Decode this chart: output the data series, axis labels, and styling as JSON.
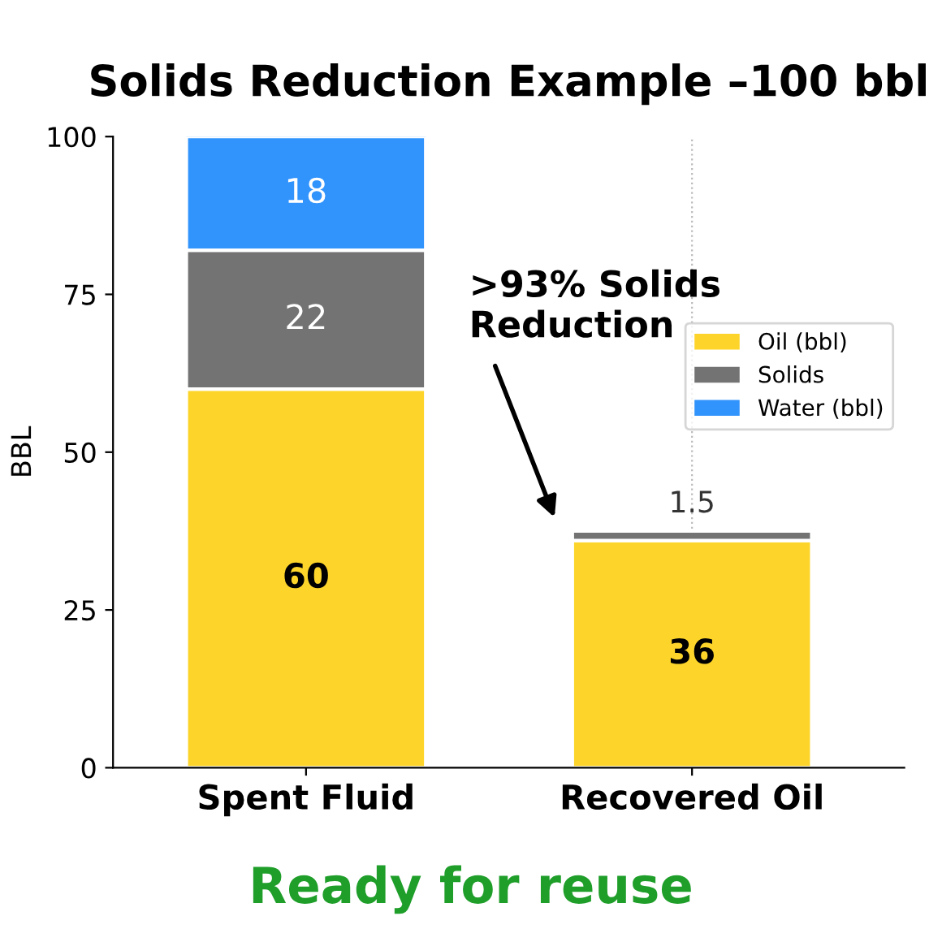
{
  "chart_data": {
    "type": "bar",
    "title": "Solids Reduction Example –100 bbl",
    "ylabel": "BBL",
    "categories": [
      "Spent Fluid",
      "Recovered Oil"
    ],
    "stacked": true,
    "series": [
      {
        "name": "Oil (bbl)",
        "color": "#fdd52a",
        "values": [
          60,
          36
        ]
      },
      {
        "name": "Solids",
        "color": "#737373",
        "values": [
          22,
          1.5
        ]
      },
      {
        "name": "Water (bbl)",
        "color": "#3193fc",
        "values": [
          18,
          null
        ]
      }
    ],
    "ylim": [
      0,
      100
    ],
    "yticks": [
      0,
      25,
      50,
      75,
      100
    ],
    "grid": "x",
    "legend": "right",
    "data_labels": true,
    "annotations": [
      ">93% Solids\nReduction",
      "Ready for reuse"
    ]
  }
}
